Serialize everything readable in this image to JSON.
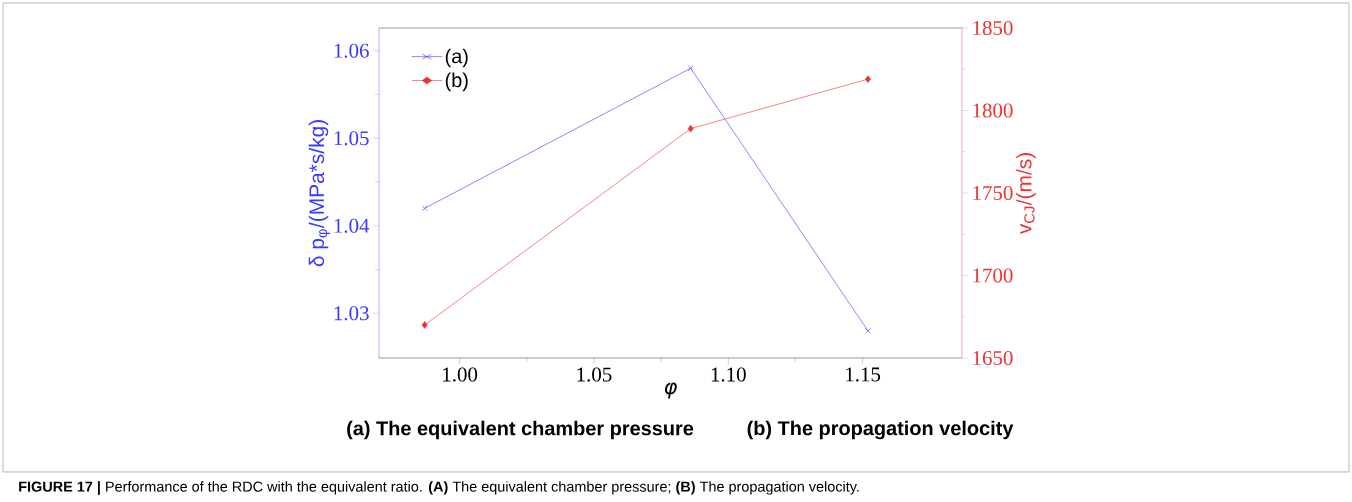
{
  "chart_data": {
    "type": "line",
    "xlabel": "φ",
    "ylabel": "δ p$_{φ}$/(MPa*s/kg)",
    "y2label": "v$_{CJ}$/(m/s)",
    "x": [
      0.987,
      1.086,
      1.152
    ],
    "series": [
      {
        "name": "(a)",
        "color": "#3a3aff",
        "marker": "cross",
        "values": [
          1.042,
          1.058,
          1.028
        ]
      },
      {
        "name": "(b)",
        "color": "#ee3333",
        "marker": "diamond",
        "axis": "y2",
        "values": [
          1670,
          1789,
          1819
        ]
      }
    ],
    "xlim": [
      0.97,
      1.187
    ],
    "xticks": [
      {
        "value": 1.0,
        "label": "1.00"
      },
      1.05,
      {
        "value": 1.1,
        "label": "1.10"
      },
      1.15
    ],
    "ylim": [
      1.0249,
      1.0626
    ],
    "yticks": [
      1.03,
      1.04,
      1.05,
      1.06
    ],
    "y2lim": [
      1650,
      1850
    ],
    "y2ticks": [
      1650,
      1700,
      1750,
      1800,
      1850
    ],
    "legend": "top left",
    "grid": false,
    "line_style": "solid",
    "annotations": [
      "(a)  The equivalent chamber pressure",
      "(b) The propagation velocity",
      "**FIGURE 17 |** Performance of the RDC with the equivalent ratio. **(A)** The equivalent chamber pressure; **(B)** The propagation velocity."
    ]
  }
}
